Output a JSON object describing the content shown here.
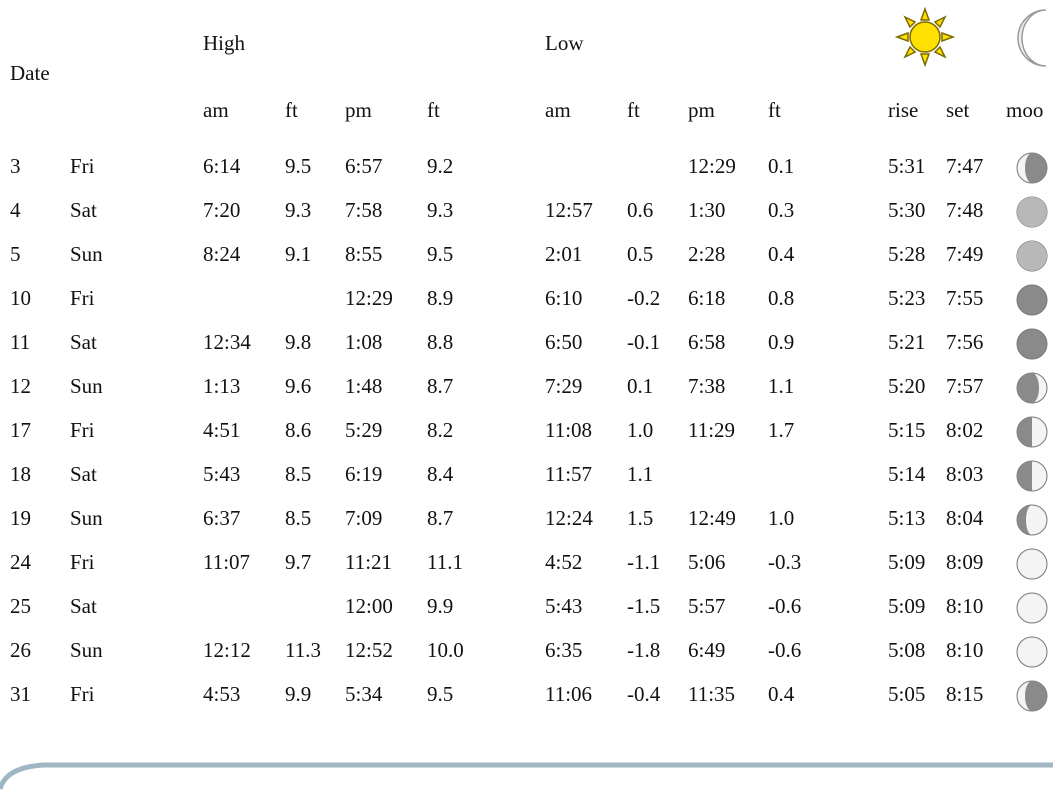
{
  "table": {
    "group_headers": {
      "date": "Date",
      "high": "High",
      "low": "Low"
    },
    "sub_headers": {
      "high_am": "am",
      "high_am_ft": "ft",
      "high_pm": "pm",
      "high_pm_ft": "ft",
      "low_am": "am",
      "low_am_ft": "ft",
      "low_pm": "pm",
      "low_pm_ft": "ft",
      "rise": "rise",
      "set": "set",
      "moon": "moo"
    },
    "icons": {
      "sun": "sun-icon",
      "moon_header": "crescent-moon-icon",
      "moon_phase": "moon-phase-icon"
    },
    "rows": [
      {
        "date": "3",
        "day": "Fri",
        "high_am": "6:14",
        "high_am_ft": "9.5",
        "high_pm": "6:57",
        "high_pm_ft": "9.2",
        "low_am": "",
        "low_am_ft": "",
        "low_pm": "12:29",
        "low_pm_ft": "0.1",
        "rise": "5:31",
        "set": "7:47",
        "moon_phase": "waning-gibbous"
      },
      {
        "date": "4",
        "day": "Sat",
        "high_am": "7:20",
        "high_am_ft": "9.3",
        "high_pm": "7:58",
        "high_pm_ft": "9.3",
        "low_am": "12:57",
        "low_am_ft": "0.6",
        "low_pm": "1:30",
        "low_pm_ft": "0.3",
        "rise": "5:30",
        "set": "7:48",
        "moon_phase": "crescent"
      },
      {
        "date": "5",
        "day": "Sun",
        "high_am": "8:24",
        "high_am_ft": "9.1",
        "high_pm": "8:55",
        "high_pm_ft": "9.5",
        "low_am": "2:01",
        "low_am_ft": "0.5",
        "low_pm": "2:28",
        "low_pm_ft": "0.4",
        "rise": "5:28",
        "set": "7:49",
        "moon_phase": "crescent"
      },
      {
        "date": "10",
        "day": "Fri",
        "high_am": "",
        "high_am_ft": "",
        "high_pm": "12:29",
        "high_pm_ft": "8.9",
        "low_am": "6:10",
        "low_am_ft": "-0.2",
        "low_pm": "6:18",
        "low_pm_ft": "0.8",
        "rise": "5:23",
        "set": "7:55",
        "moon_phase": "new"
      },
      {
        "date": "11",
        "day": "Sat",
        "high_am": "12:34",
        "high_am_ft": "9.8",
        "high_pm": "1:08",
        "high_pm_ft": "8.8",
        "low_am": "6:50",
        "low_am_ft": "-0.1",
        "low_pm": "6:58",
        "low_pm_ft": "0.9",
        "rise": "5:21",
        "set": "7:56",
        "moon_phase": "new"
      },
      {
        "date": "12",
        "day": "Sun",
        "high_am": "1:13",
        "high_am_ft": "9.6",
        "high_pm": "1:48",
        "high_pm_ft": "8.7",
        "low_am": "7:29",
        "low_am_ft": "0.1",
        "low_pm": "7:38",
        "low_pm_ft": "1.1",
        "rise": "5:20",
        "set": "7:57",
        "moon_phase": "waxing-crescent"
      },
      {
        "date": "17",
        "day": "Fri",
        "high_am": "4:51",
        "high_am_ft": "8.6",
        "high_pm": "5:29",
        "high_pm_ft": "8.2",
        "low_am": "11:08",
        "low_am_ft": "1.0",
        "low_pm": "11:29",
        "low_pm_ft": "1.7",
        "rise": "5:15",
        "set": "8:02",
        "moon_phase": "first-quarter"
      },
      {
        "date": "18",
        "day": "Sat",
        "high_am": "5:43",
        "high_am_ft": "8.5",
        "high_pm": "6:19",
        "high_pm_ft": "8.4",
        "low_am": "11:57",
        "low_am_ft": "1.1",
        "low_pm": "",
        "low_pm_ft": "",
        "rise": "5:14",
        "set": "8:03",
        "moon_phase": "first-quarter"
      },
      {
        "date": "19",
        "day": "Sun",
        "high_am": "6:37",
        "high_am_ft": "8.5",
        "high_pm": "7:09",
        "high_pm_ft": "8.7",
        "low_am": "12:24",
        "low_am_ft": "1.5",
        "low_pm": "12:49",
        "low_pm_ft": "1.0",
        "rise": "5:13",
        "set": "8:04",
        "moon_phase": "waxing-gibbous"
      },
      {
        "date": "24",
        "day": "Fri",
        "high_am": "11:07",
        "high_am_ft": "9.7",
        "high_pm": "11:21",
        "high_pm_ft": "11.1",
        "low_am": "4:52",
        "low_am_ft": "-1.1",
        "low_pm": "5:06",
        "low_pm_ft": "-0.3",
        "rise": "5:09",
        "set": "8:09",
        "moon_phase": "full"
      },
      {
        "date": "25",
        "day": "Sat",
        "high_am": "",
        "high_am_ft": "",
        "high_pm": "12:00",
        "high_pm_ft": "9.9",
        "low_am": "5:43",
        "low_am_ft": "-1.5",
        "low_pm": "5:57",
        "low_pm_ft": "-0.6",
        "rise": "5:09",
        "set": "8:10",
        "moon_phase": "full"
      },
      {
        "date": "26",
        "day": "Sun",
        "high_am": "12:12",
        "high_am_ft": "11.3",
        "high_pm": "12:52",
        "high_pm_ft": "10.0",
        "low_am": "6:35",
        "low_am_ft": "-1.8",
        "low_pm": "6:49",
        "low_pm_ft": "-0.6",
        "rise": "5:08",
        "set": "8:10",
        "moon_phase": "full"
      },
      {
        "date": "31",
        "day": "Fri",
        "high_am": "4:53",
        "high_am_ft": "9.9",
        "high_pm": "5:34",
        "high_pm_ft": "9.5",
        "low_am": "11:06",
        "low_am_ft": "-0.4",
        "low_pm": "11:35",
        "low_pm_ft": "0.4",
        "rise": "5:05",
        "set": "8:15",
        "moon_phase": "waning-gibbous"
      }
    ]
  },
  "colors": {
    "sun_yellow": "#ffe000",
    "sun_outline": "#7a6a00",
    "moon_light": "#f4f4f4",
    "moon_shadow": "#8a8a8a",
    "curve": "#9fb6c3"
  }
}
